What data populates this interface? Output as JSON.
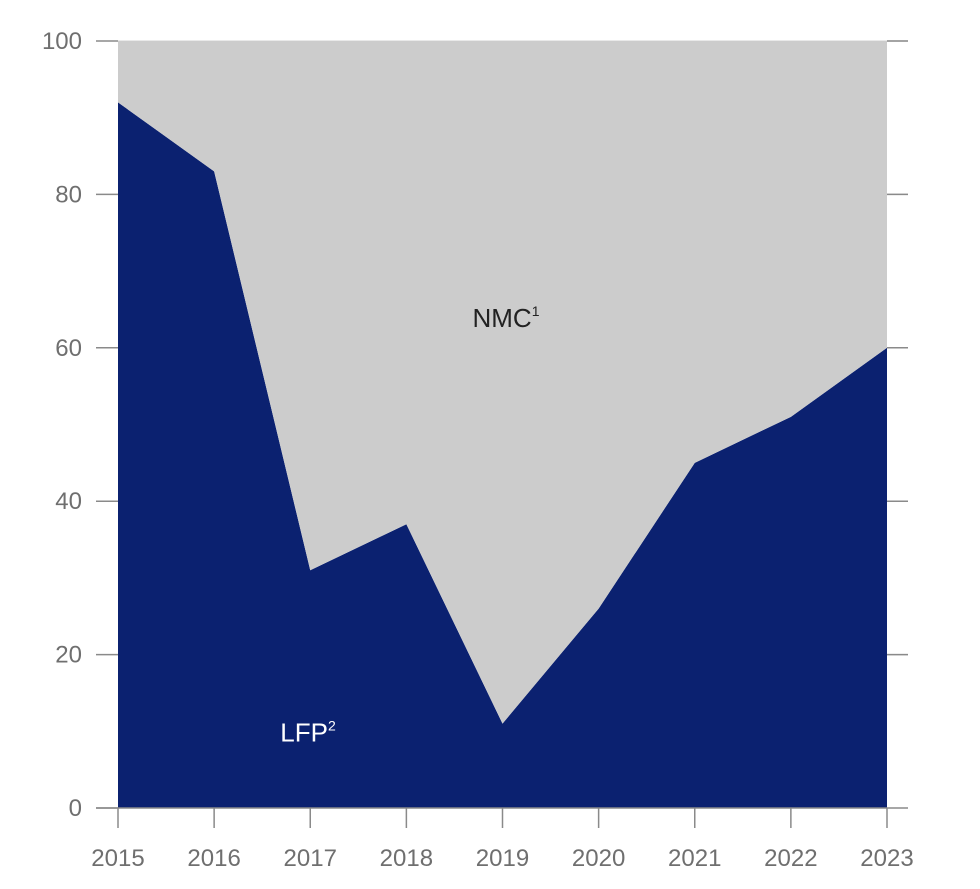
{
  "chart_data": {
    "type": "area",
    "stacked": true,
    "percent": true,
    "x": [
      "2015",
      "2016",
      "2017",
      "2018",
      "2019",
      "2020",
      "2021",
      "2022",
      "2023"
    ],
    "series": [
      {
        "name": "LFP",
        "footnote": "2",
        "color": "#0b2170",
        "label_color": "#ffffff",
        "values": [
          92,
          83,
          31,
          37,
          11,
          26,
          45,
          51,
          60
        ]
      },
      {
        "name": "NMC",
        "footnote": "1",
        "color": "#cccccc",
        "label_color": "#222222",
        "values": [
          8,
          17,
          69,
          63,
          89,
          74,
          55,
          49,
          40
        ]
      }
    ],
    "ylim": [
      0,
      100
    ],
    "yticks": [
      "0",
      "20",
      "40",
      "60",
      "80",
      "100"
    ],
    "grid": true,
    "legend": "inline-labels"
  }
}
